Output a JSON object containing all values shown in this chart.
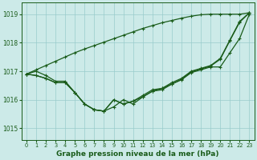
{
  "title": "Graphe pression niveau de la mer (hPa)",
  "background_color": "#cceae8",
  "grid_color": "#99cccc",
  "line_color": "#1a5c1a",
  "xlim": [
    -0.5,
    23.5
  ],
  "ylim": [
    1014.6,
    1019.4
  ],
  "yticks": [
    1015,
    1016,
    1017,
    1018,
    1019
  ],
  "xticks": [
    0,
    1,
    2,
    3,
    4,
    5,
    6,
    7,
    8,
    9,
    10,
    11,
    12,
    13,
    14,
    15,
    16,
    17,
    18,
    19,
    20,
    21,
    22,
    23
  ],
  "series": [
    [
      1016.9,
      1017.0,
      1016.85,
      1016.65,
      1016.65,
      1016.25,
      1015.85,
      1015.65,
      1015.6,
      1015.75,
      1016.0,
      1015.85,
      1016.1,
      1016.3,
      1016.35,
      1016.55,
      1016.7,
      1016.95,
      1017.05,
      1017.15,
      1017.15,
      1017.65,
      1018.15,
      1019.0
    ],
    [
      1016.9,
      1016.85,
      1016.75,
      1016.6,
      1016.6,
      1016.25,
      1015.85,
      1015.65,
      1015.6,
      1016.0,
      1015.85,
      1015.95,
      1016.15,
      1016.35,
      1016.4,
      1016.6,
      1016.75,
      1017.0,
      1017.1,
      1017.2,
      1017.45,
      1018.1,
      1018.75,
      1019.05
    ],
    [
      1016.9,
      1016.85,
      1016.75,
      1016.6,
      1016.6,
      1016.25,
      1015.85,
      1015.65,
      1015.6,
      1016.0,
      1015.85,
      1015.95,
      1016.1,
      1016.3,
      1016.4,
      1016.55,
      1016.72,
      1016.98,
      1017.08,
      1017.18,
      1017.42,
      1018.08,
      1018.72,
      1019.05
    ]
  ],
  "diagonal_series": [
    1016.9,
    1017.05,
    1017.2,
    1017.35,
    1017.5,
    1017.65,
    1017.78,
    1017.9,
    1018.02,
    1018.14,
    1018.26,
    1018.38,
    1018.5,
    1018.6,
    1018.7,
    1018.78,
    1018.86,
    1018.93,
    1018.98,
    1019.0,
    1019.0,
    1019.0,
    1019.0,
    1019.05
  ]
}
